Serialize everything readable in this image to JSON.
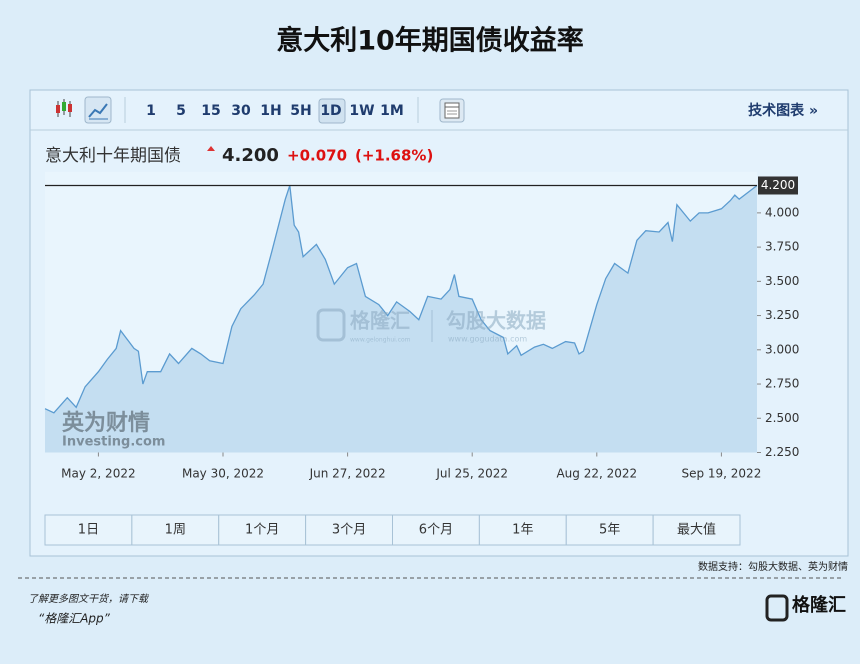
{
  "header": {
    "title": "意大利10年期国债收益率"
  },
  "toolbar": {
    "intervals": [
      "1",
      "5",
      "15",
      "30",
      "1H",
      "5H",
      "1D",
      "1W",
      "1M"
    ],
    "link": "技术图表 »"
  },
  "quote": {
    "name": "意大利十年期国债",
    "price": "4.200",
    "change": "+0.070",
    "change_pct": "(+1.68%)"
  },
  "chart_data": {
    "type": "area",
    "x": [
      "2022-04-20",
      "2022-04-22",
      "2022-04-25",
      "2022-04-27",
      "2022-04-29",
      "2022-05-02",
      "2022-05-04",
      "2022-05-06",
      "2022-05-07",
      "2022-05-10",
      "2022-05-11",
      "2022-05-12",
      "2022-05-13",
      "2022-05-16",
      "2022-05-18",
      "2022-05-20",
      "2022-05-23",
      "2022-05-25",
      "2022-05-27",
      "2022-05-30",
      "2022-06-01",
      "2022-06-03",
      "2022-06-06",
      "2022-06-08",
      "2022-06-10",
      "2022-06-13",
      "2022-06-14",
      "2022-06-15",
      "2022-06-16",
      "2022-06-17",
      "2022-06-20",
      "2022-06-22",
      "2022-06-24",
      "2022-06-27",
      "2022-06-29",
      "2022-07-01",
      "2022-07-04",
      "2022-07-06",
      "2022-07-08",
      "2022-07-11",
      "2022-07-13",
      "2022-07-15",
      "2022-07-18",
      "2022-07-20",
      "2022-07-21",
      "2022-07-22",
      "2022-07-25",
      "2022-07-27",
      "2022-07-29",
      "2022-08-01",
      "2022-08-02",
      "2022-08-04",
      "2022-08-05",
      "2022-08-08",
      "2022-08-10",
      "2022-08-12",
      "2022-08-15",
      "2022-08-17",
      "2022-08-18",
      "2022-08-19",
      "2022-08-22",
      "2022-08-24",
      "2022-08-26",
      "2022-08-29",
      "2022-08-31",
      "2022-09-02",
      "2022-09-05",
      "2022-09-07",
      "2022-09-08",
      "2022-09-09",
      "2022-09-12",
      "2022-09-14",
      "2022-09-16",
      "2022-09-19",
      "2022-09-21",
      "2022-09-22",
      "2022-09-23",
      "2022-09-27"
    ],
    "values": [
      2.57,
      2.54,
      2.65,
      2.58,
      2.73,
      2.84,
      2.93,
      3.01,
      3.14,
      3.01,
      2.99,
      2.75,
      2.84,
      2.84,
      2.97,
      2.9,
      3.01,
      2.97,
      2.92,
      2.9,
      3.17,
      3.3,
      3.4,
      3.48,
      3.72,
      4.1,
      4.2,
      3.91,
      3.86,
      3.68,
      3.77,
      3.66,
      3.48,
      3.6,
      3.63,
      3.39,
      3.33,
      3.25,
      3.35,
      3.28,
      3.22,
      3.39,
      3.37,
      3.44,
      3.55,
      3.39,
      3.37,
      3.22,
      3.14,
      3.09,
      2.97,
      3.03,
      2.96,
      3.02,
      3.04,
      3.01,
      3.06,
      3.05,
      2.97,
      2.99,
      3.33,
      3.52,
      3.63,
      3.56,
      3.8,
      3.87,
      3.86,
      3.93,
      3.79,
      4.06,
      3.94,
      4.0,
      4.0,
      4.03,
      4.09,
      4.13,
      4.1,
      4.2
    ],
    "line_color": "#5b9bd0",
    "fill_color": "#c4def1",
    "xlim": [
      "2022-04-20",
      "2022-09-27"
    ],
    "xticks": [
      {
        "value": "2022-05-02",
        "label": "May 2, 2022"
      },
      {
        "value": "2022-05-30",
        "label": "May 30, 2022"
      },
      {
        "value": "2022-06-27",
        "label": "Jun 27, 2022"
      },
      {
        "value": "2022-07-25",
        "label": "Jul 25, 2022"
      },
      {
        "value": "2022-08-22",
        "label": "Aug 22, 2022"
      },
      {
        "value": "2022-09-19",
        "label": "Sep 19, 2022"
      }
    ],
    "ylim": [
      2.25,
      4.3
    ],
    "yticks": [
      {
        "value": 2.25,
        "label": "2.250"
      },
      {
        "value": 2.5,
        "label": "2.500"
      },
      {
        "value": 2.75,
        "label": "2.750"
      },
      {
        "value": 3,
        "label": "3.000"
      },
      {
        "value": 3.25,
        "label": "3.250"
      },
      {
        "value": 3.5,
        "label": "3.500"
      },
      {
        "value": 3.75,
        "label": "3.750"
      },
      {
        "value": 4,
        "label": "4.000"
      }
    ],
    "price_line": {
      "value": 4.2,
      "label": "4.200"
    }
  },
  "ranges": [
    "1日",
    "1周",
    "1个月",
    "3个月",
    "6个月",
    "1年",
    "5年",
    "最大值"
  ],
  "watermarks": {
    "brand": "格隆汇",
    "brand_url": "www.gelonghui.com",
    "data": "勾股大数据",
    "data_url": "www.gogudata.com",
    "investing_cn": "英为财情",
    "investing": "Investing.com"
  },
  "source": "数据支持：勾股大数据、英为财情",
  "footer": {
    "line1": "了解更多图文干货，请下载",
    "line2": "“格隆汇App”",
    "logo": "格隆汇"
  }
}
